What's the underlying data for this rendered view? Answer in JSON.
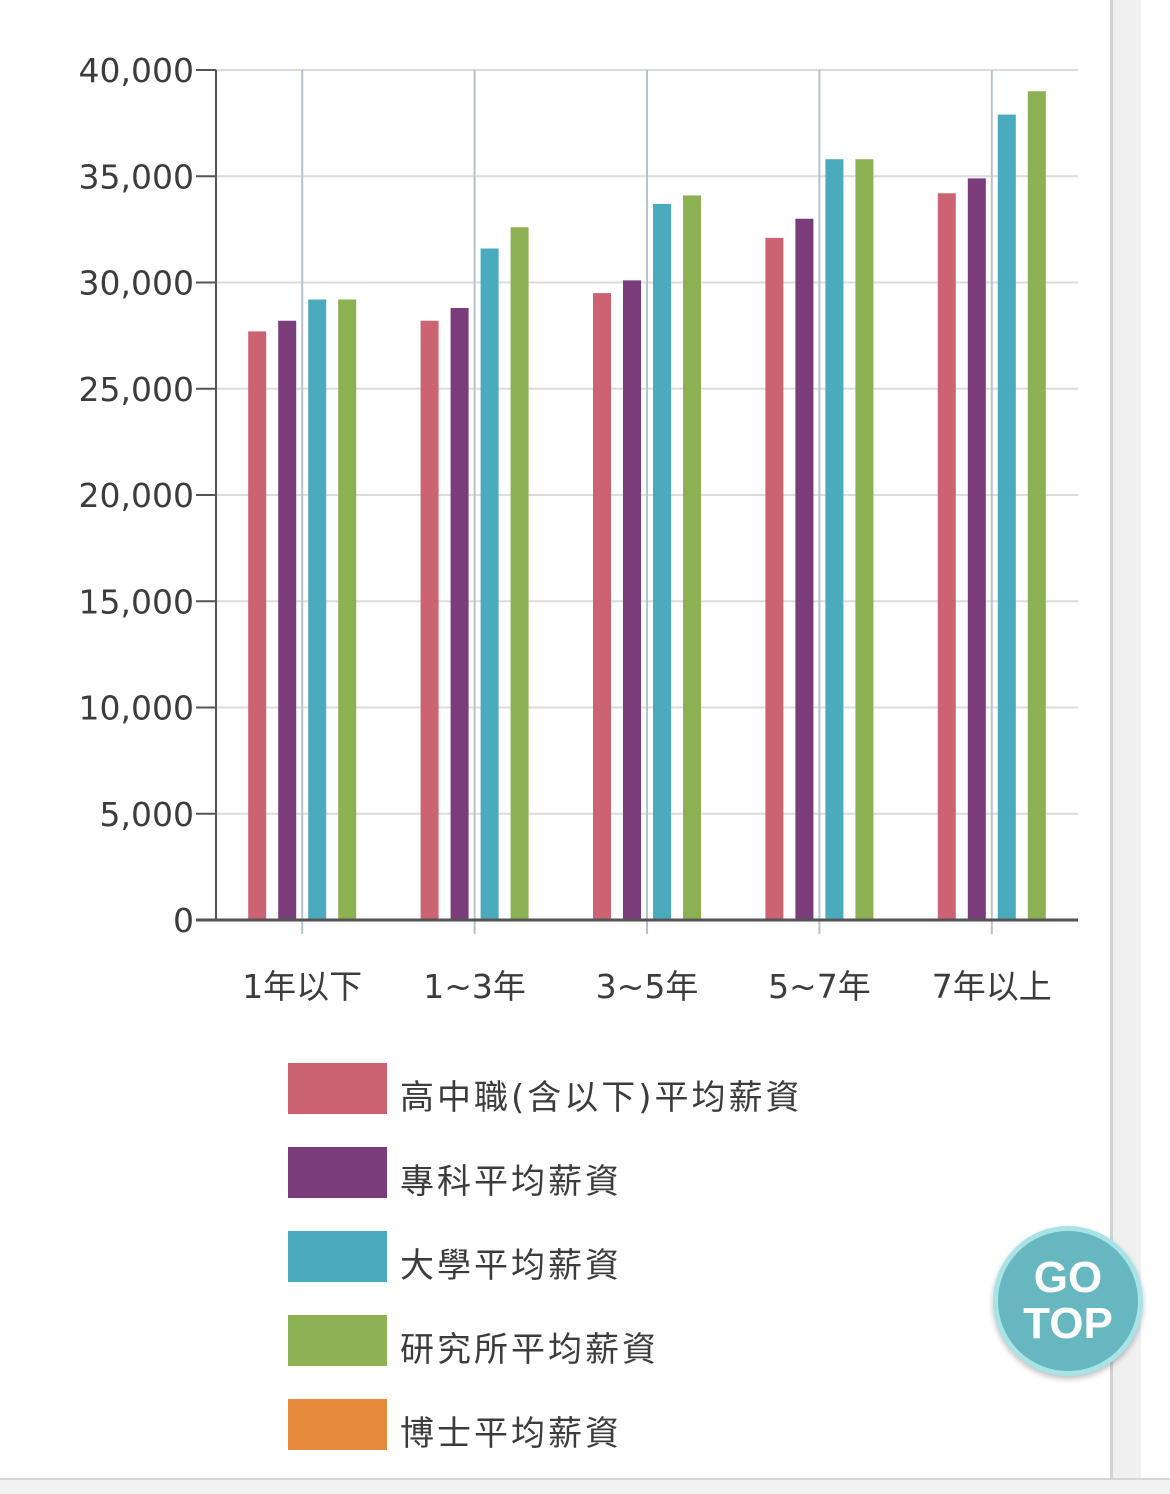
{
  "chart_data": {
    "type": "bar",
    "categories": [
      "1年以下",
      "1~3年",
      "3~5年",
      "5~7年",
      "7年以上"
    ],
    "series": [
      {
        "name": "高中職(含以下)平均薪資",
        "color": "#cc6373",
        "values": [
          27700,
          28200,
          29500,
          32100,
          34200
        ]
      },
      {
        "name": "專科平均薪資",
        "color": "#7b3c7c",
        "values": [
          28200,
          28800,
          30100,
          33000,
          34900
        ]
      },
      {
        "name": "大學平均薪資",
        "color": "#4aaabe",
        "values": [
          29200,
          31600,
          33700,
          35800,
          37900
        ]
      },
      {
        "name": "研究所平均薪資",
        "color": "#8bb152",
        "values": [
          29200,
          32600,
          34100,
          35800,
          39000
        ]
      },
      {
        "name": "博士平均薪資",
        "color": "#e78a3c",
        "values": [
          0,
          0,
          0,
          0,
          0
        ]
      }
    ],
    "yticks": [
      "0",
      "5,000",
      "10,000",
      "15,000",
      "20,000",
      "25,000",
      "30,000",
      "35,000",
      "40,000"
    ],
    "ylim": [
      0,
      40000
    ],
    "grid": true,
    "legend_position": "bottom"
  },
  "go_top": {
    "line1": "GO",
    "line2": "TOP"
  }
}
